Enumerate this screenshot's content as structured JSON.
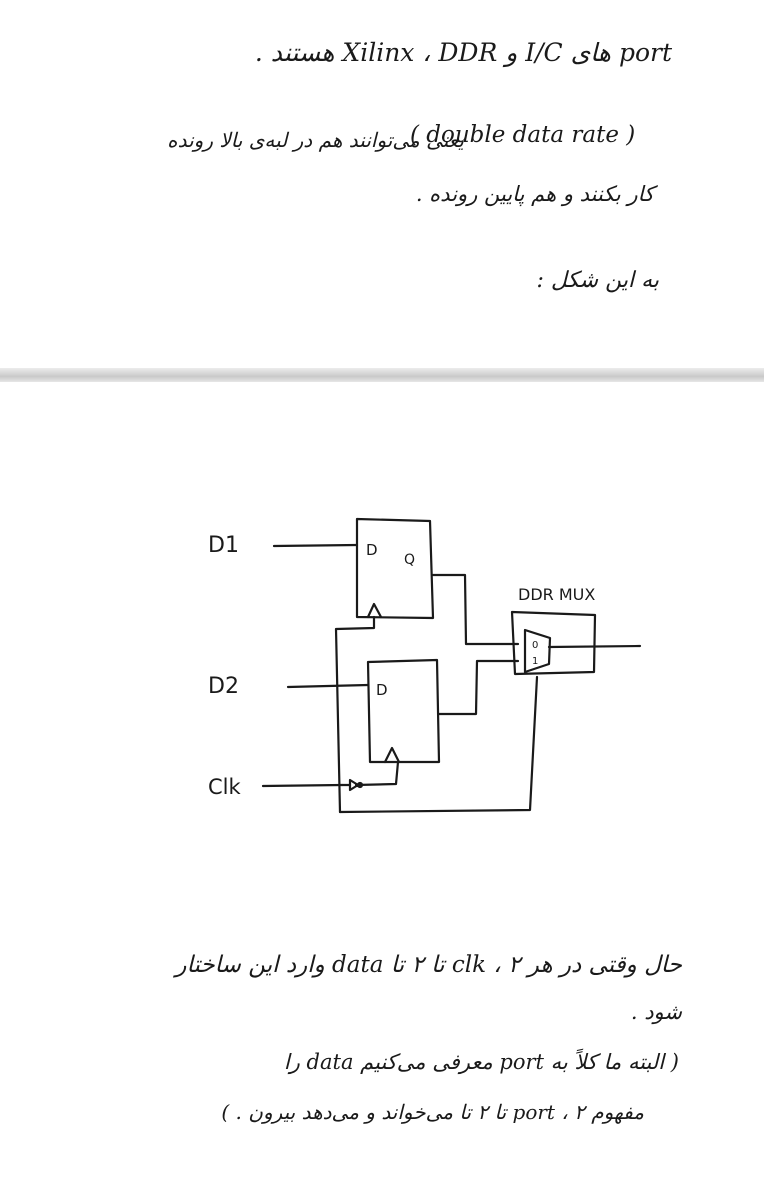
{
  "page1": {
    "line1": "port های I/C و Xilinx ، DDR هستند .",
    "line2": "یعنی می‌توانند هم در لبه‌ی بالا رونده",
    "line2_paren": "( double data rate )",
    "line3": "کار بکنند و هم پایین رونده .",
    "line4": "به این شکل :"
  },
  "diagram": {
    "d1_label": "D1",
    "d2_label": "D2",
    "clk_label": "Clk",
    "ff1_d": "D",
    "ff1_q": "Q",
    "ff2_d": "D",
    "mux_label": "DDR MUX",
    "mux_in0": "0",
    "mux_in1": "1"
  },
  "page2": {
    "line1": "حال وقتی در هر clk ، ۲ تا ۲ تا data وارد این ساختار",
    "line1b": "شود .",
    "line2": "( البته ما کلاً به port معرفی می‌کنیم data را",
    "line3": "مفهوم port ، ۲ تا ۲ تا می‌خواند و می‌دهد بیرون . )"
  }
}
